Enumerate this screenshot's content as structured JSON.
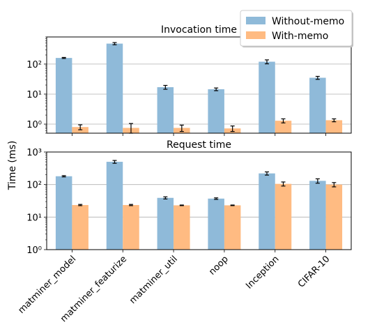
{
  "chart_data": {
    "type": "bar",
    "shared": {
      "categories": [
        "matminer_model",
        "matminer_featurize",
        "matminer_util",
        "noop",
        "Inception",
        "CIFAR-10"
      ],
      "ylabel": "Time (ms)",
      "yscale": "log",
      "legend": {
        "placement": "top-right",
        "entries": [
          "Without-memo",
          "With-memo"
        ]
      },
      "colors": {
        "Without-memo": "#8fbad9",
        "With-memo": "#ffbb82"
      }
    },
    "panels": [
      {
        "title": "Invocation time",
        "ylim": [
          0.5,
          800
        ],
        "yticks": [
          {
            "value": 1,
            "label": "10⁰"
          },
          {
            "value": 10,
            "label": "10¹"
          },
          {
            "value": 100,
            "label": "10²"
          }
        ],
        "series": [
          {
            "name": "Without-memo",
            "values": [
              160,
              480,
              17,
              14.5,
              120,
              35
            ],
            "errors": [
              6,
              40,
              2.5,
              1.5,
              18,
              4
            ]
          },
          {
            "name": "With-memo",
            "values": [
              0.8,
              0.75,
              0.75,
              0.72,
              1.3,
              1.35
            ],
            "errors": [
              0.15,
              0.3,
              0.18,
              0.15,
              0.2,
              0.15
            ]
          }
        ]
      },
      {
        "title": "Request time",
        "ylim": [
          1,
          1000
        ],
        "yticks": [
          {
            "value": 1,
            "label": "10⁰"
          },
          {
            "value": 10,
            "label": "10¹"
          },
          {
            "value": 100,
            "label": "10²"
          },
          {
            "value": 1000,
            "label": "10³"
          }
        ],
        "series": [
          {
            "name": "Without-memo",
            "values": [
              180,
              500,
              39,
              37,
              220,
              130
            ],
            "errors": [
              8,
              50,
              3,
              2,
              25,
              20
            ]
          },
          {
            "name": "With-memo",
            "values": [
              23.5,
              23.5,
              23,
              23,
              105,
              100
            ],
            "errors": [
              1,
              1,
              0.5,
              0.5,
              15,
              15
            ]
          }
        ]
      }
    ]
  }
}
